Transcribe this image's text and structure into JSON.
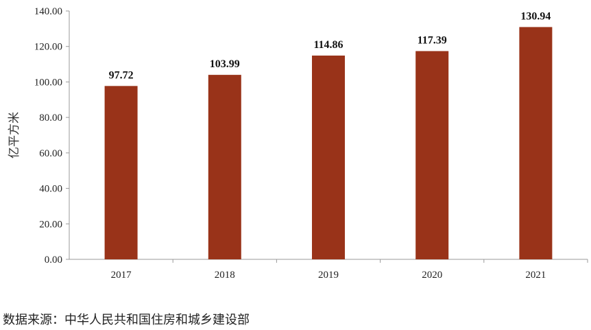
{
  "chart_data": {
    "type": "bar",
    "categories": [
      "2017",
      "2018",
      "2019",
      "2020",
      "2021"
    ],
    "values": [
      97.72,
      103.99,
      114.86,
      117.39,
      130.94
    ],
    "value_labels": [
      "97.72",
      "103.99",
      "114.86",
      "117.39",
      "130.94"
    ],
    "title": "",
    "xlabel": "",
    "ylabel": "亿平方米",
    "ylim": [
      0,
      140
    ],
    "yticks": [
      "0.00",
      "20.00",
      "40.00",
      "60.00",
      "80.00",
      "100.00",
      "120.00",
      "140.00"
    ],
    "bar_color": "#993319",
    "grid": false,
    "legend": "none"
  },
  "source_note": "数据来源：中华人民共和国住房和城乡建设部"
}
